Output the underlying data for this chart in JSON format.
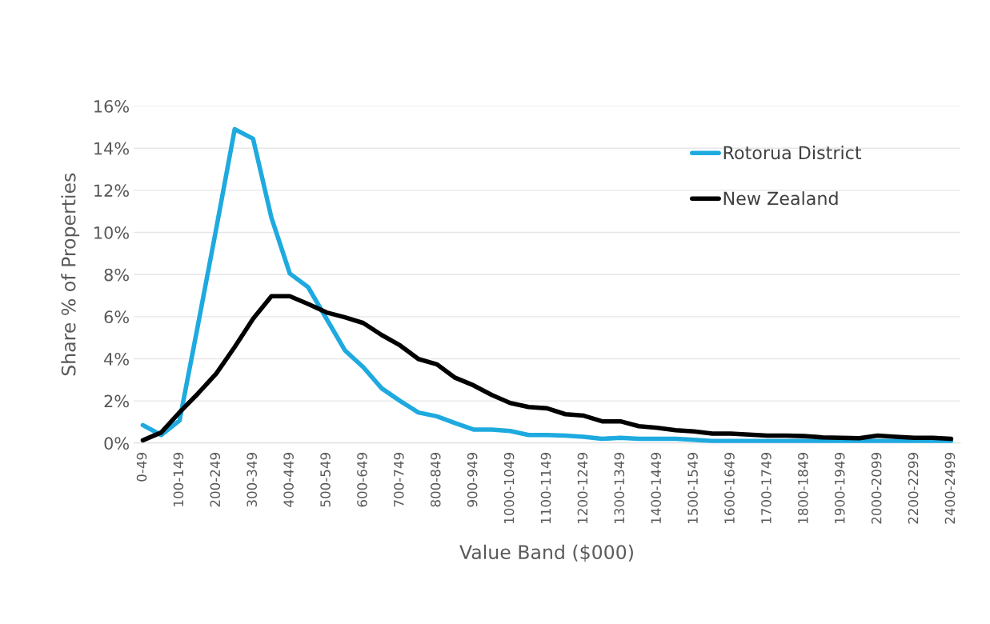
{
  "chart_data": {
    "type": "line",
    "xlabel": "Value Band ($000)",
    "ylabel": "Share % of Properties",
    "categories": [
      "0-49",
      null,
      "100-149",
      null,
      "200-249",
      null,
      "300-349",
      null,
      "400-449",
      null,
      "500-549",
      null,
      "600-649",
      null,
      "700-749",
      null,
      "800-849",
      null,
      "900-949",
      null,
      "1000-1049",
      null,
      "1100-1149",
      null,
      "1200-1249",
      null,
      "1300-1349",
      null,
      "1400-1449",
      null,
      "1500-1549",
      null,
      "1600-1649",
      null,
      "1700-1749",
      null,
      "1800-1849",
      null,
      "1900-1949",
      null,
      "2000-2099",
      null,
      "2200-2299",
      null,
      "2400-2499"
    ],
    "series": [
      {
        "name": "Rotorua District",
        "color": "#1eaadf",
        "values": [
          0.85,
          0.38,
          1.07,
          5.6,
          10.2,
          14.9,
          14.45,
          10.7,
          8.05,
          7.4,
          5.9,
          4.4,
          3.6,
          2.6,
          2.0,
          1.45,
          1.27,
          0.95,
          0.64,
          0.64,
          0.57,
          0.38,
          0.38,
          0.35,
          0.3,
          0.2,
          0.25,
          0.2,
          0.2,
          0.2,
          0.15,
          0.1,
          0.1,
          0.1,
          0.1,
          0.1,
          0.1,
          0.1,
          0.1,
          0.1,
          0.1,
          0.1,
          0.1,
          0.1,
          0.1
        ]
      },
      {
        "name": "New Zealand",
        "color": "#000000",
        "values": [
          0.13,
          0.5,
          1.46,
          2.35,
          3.3,
          4.56,
          5.9,
          6.97,
          6.97,
          6.6,
          6.2,
          5.97,
          5.7,
          5.13,
          4.64,
          3.99,
          3.74,
          3.1,
          2.74,
          2.28,
          1.9,
          1.71,
          1.65,
          1.37,
          1.3,
          1.03,
          1.03,
          0.8,
          0.72,
          0.61,
          0.55,
          0.45,
          0.45,
          0.4,
          0.35,
          0.35,
          0.33,
          0.27,
          0.25,
          0.23,
          0.35,
          0.3,
          0.25,
          0.25,
          0.2
        ]
      }
    ],
    "ylim": [
      0,
      16
    ],
    "yticks": [
      {
        "value": 0,
        "label": "0%"
      },
      {
        "value": 2,
        "label": "2%"
      },
      {
        "value": 4,
        "label": "4%"
      },
      {
        "value": 6,
        "label": "6%"
      },
      {
        "value": 8,
        "label": "8%"
      },
      {
        "value": 10,
        "label": "10%"
      },
      {
        "value": 12,
        "label": "12%"
      },
      {
        "value": 14,
        "label": "14%"
      },
      {
        "value": 16,
        "label": "16%"
      }
    ],
    "grid": "y",
    "legend": "top right",
    "marker": "none",
    "line_style": "solid"
  }
}
